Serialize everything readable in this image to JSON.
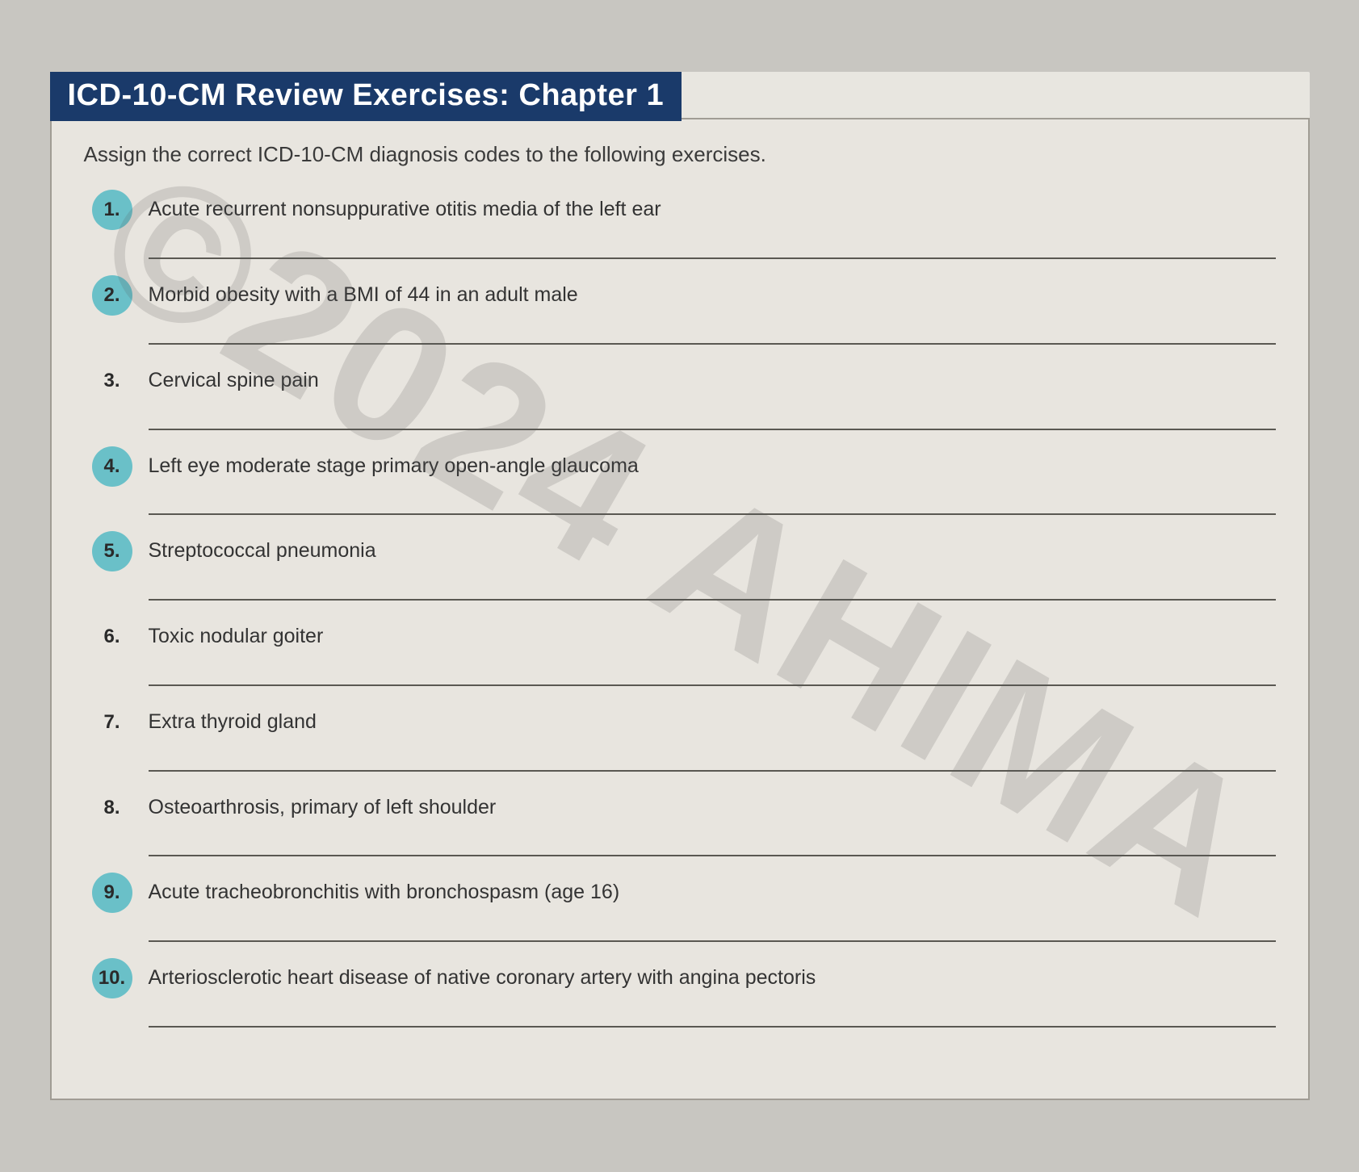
{
  "title": "ICD-10-CM Review Exercises: Chapter 1",
  "instructions": "Assign the correct ICD-10-CM diagnosis codes to the following exercises.",
  "watermark": "©2024 AHIMA",
  "colors": {
    "title_bar_bg": "#1a3a6a",
    "title_bar_text": "#ffffff",
    "page_bg": "#e8e6e0",
    "body_bg": "#c8c6c1",
    "badge_bg": "#6ac0c8",
    "text": "#333333",
    "line": "#5a5852",
    "border": "#a09c94",
    "watermark": "rgba(90,90,90,0.18)"
  },
  "typography": {
    "title_fontsize": 38,
    "instructions_fontsize": 26,
    "prompt_fontsize": 25,
    "number_fontsize": 24,
    "watermark_fontsize": 240
  },
  "exercises": [
    {
      "num": "1.",
      "highlighted": true,
      "text": "Acute recurrent nonsuppurative otitis media of the left ear"
    },
    {
      "num": "2.",
      "highlighted": true,
      "text": "Morbid obesity with a BMI of 44 in an adult male"
    },
    {
      "num": "3.",
      "highlighted": false,
      "text": "Cervical spine pain"
    },
    {
      "num": "4.",
      "highlighted": true,
      "text": "Left eye moderate stage primary open-angle glaucoma"
    },
    {
      "num": "5.",
      "highlighted": true,
      "text": "Streptococcal pneumonia"
    },
    {
      "num": "6.",
      "highlighted": false,
      "text": "Toxic nodular goiter"
    },
    {
      "num": "7.",
      "highlighted": false,
      "text": "Extra thyroid gland"
    },
    {
      "num": "8.",
      "highlighted": false,
      "text": "Osteoarthrosis, primary of left shoulder"
    },
    {
      "num": "9.",
      "highlighted": true,
      "text": "Acute tracheobronchitis with bronchospasm (age 16)"
    },
    {
      "num": "10.",
      "highlighted": true,
      "text": "Arteriosclerotic heart disease of native coronary artery with angina pectoris"
    }
  ]
}
